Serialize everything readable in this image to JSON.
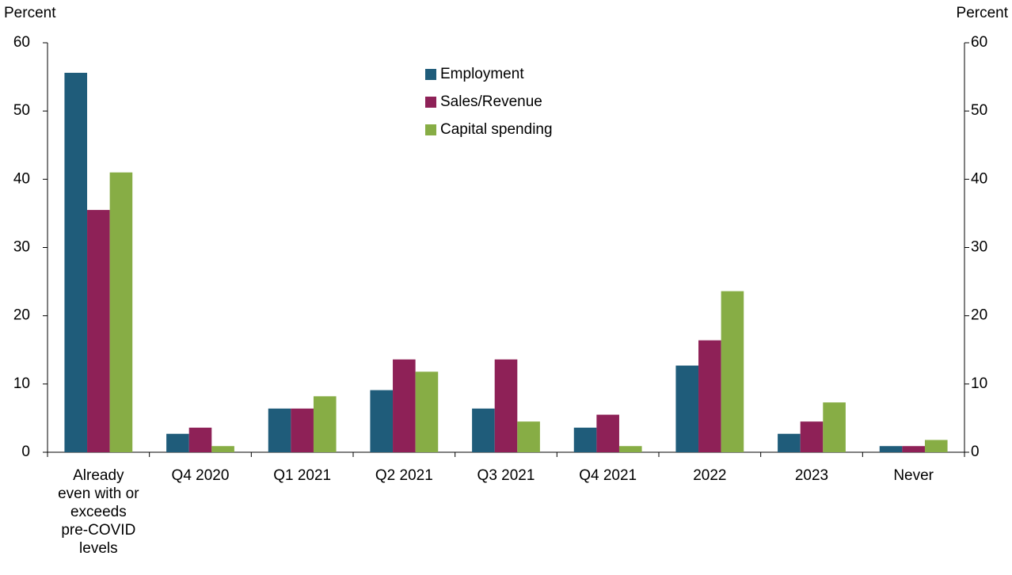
{
  "chart_data": {
    "type": "bar",
    "y_label": "Percent",
    "y2_label": "Percent",
    "categories": [
      "Already even with or exceeds pre-COVID levels",
      "Q4 2020",
      "Q1 2021",
      "Q2 2021",
      "Q3 2021",
      "Q4 2021",
      "2022",
      "2023",
      "Never"
    ],
    "series": [
      {
        "name": "Employment",
        "color": "#1f5c7a",
        "values": [
          55.6,
          2.7,
          6.4,
          9.1,
          6.4,
          3.6,
          12.7,
          2.7,
          0.9
        ]
      },
      {
        "name": "Sales/Revenue",
        "color": "#8e2157",
        "values": [
          35.5,
          3.6,
          6.4,
          13.6,
          13.6,
          5.5,
          16.4,
          4.5,
          0.9
        ]
      },
      {
        "name": "Capital spending",
        "color": "#87ad45",
        "values": [
          41.0,
          0.9,
          8.2,
          11.8,
          4.5,
          0.9,
          23.6,
          7.3,
          1.8
        ]
      }
    ],
    "ylim": [
      0,
      60
    ],
    "yticks": [
      0,
      10,
      20,
      30,
      40,
      50,
      60
    ],
    "y2lim": [
      0,
      60
    ],
    "y2ticks": [
      0,
      10,
      20,
      30,
      40,
      50,
      60
    ],
    "legend": "top-center"
  }
}
